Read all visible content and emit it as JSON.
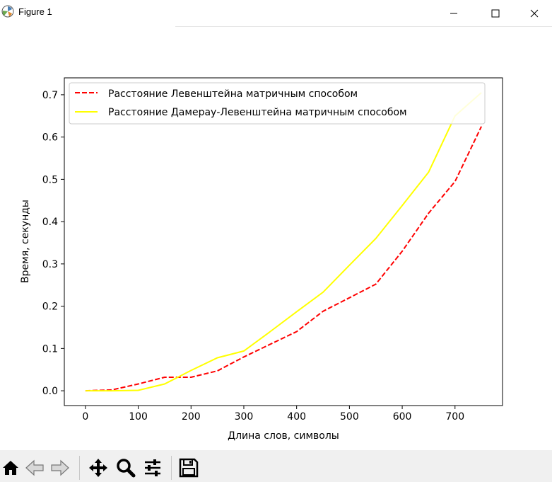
{
  "window": {
    "title": "Figure 1"
  },
  "toolbar": {
    "buttons": [
      {
        "name": "home-icon"
      },
      {
        "name": "back-arrow-icon"
      },
      {
        "name": "forward-arrow-icon"
      },
      {
        "name": "pan-icon"
      },
      {
        "name": "zoom-icon"
      },
      {
        "name": "configure-subplots-icon"
      },
      {
        "name": "save-icon"
      }
    ]
  },
  "chart_data": {
    "type": "line",
    "title": "",
    "xlabel": "Длина слов, символы",
    "ylabel": "Время, секунды",
    "xlim": [
      -40,
      790
    ],
    "ylim": [
      -0.035,
      0.74
    ],
    "xticks": [
      0,
      100,
      200,
      300,
      400,
      500,
      600,
      700
    ],
    "yticks": [
      0.0,
      0.1,
      0.2,
      0.3,
      0.4,
      0.5,
      0.6,
      0.7
    ],
    "xtick_labels": [
      "0",
      "100",
      "200",
      "300",
      "400",
      "500",
      "600",
      "700"
    ],
    "ytick_labels": [
      "0.0",
      "0.1",
      "0.2",
      "0.3",
      "0.4",
      "0.5",
      "0.6",
      "0.7"
    ],
    "legend_position": "upper left",
    "grid": false,
    "series": [
      {
        "name": "Расстояние Левенштейна матричным способом",
        "color": "#ff0000",
        "style": "dashed",
        "x": [
          0,
          50,
          100,
          150,
          200,
          250,
          300,
          350,
          400,
          450,
          500,
          550,
          600,
          650,
          700,
          750
        ],
        "y": [
          0.0,
          0.002,
          0.016,
          0.032,
          0.032,
          0.047,
          0.08,
          0.11,
          0.14,
          0.188,
          0.22,
          0.252,
          0.33,
          0.42,
          0.495,
          0.625
        ]
      },
      {
        "name": "Расстояние Дамерау-Левенштейна матричным способом",
        "color": "#ffff00",
        "style": "solid",
        "x": [
          0,
          50,
          100,
          150,
          200,
          250,
          300,
          350,
          400,
          450,
          500,
          550,
          600,
          650,
          700,
          750
        ],
        "y": [
          0.0,
          0.0,
          0.001,
          0.016,
          0.048,
          0.078,
          0.094,
          0.14,
          0.187,
          0.233,
          0.297,
          0.36,
          0.438,
          0.517,
          0.65,
          0.705
        ]
      }
    ]
  }
}
